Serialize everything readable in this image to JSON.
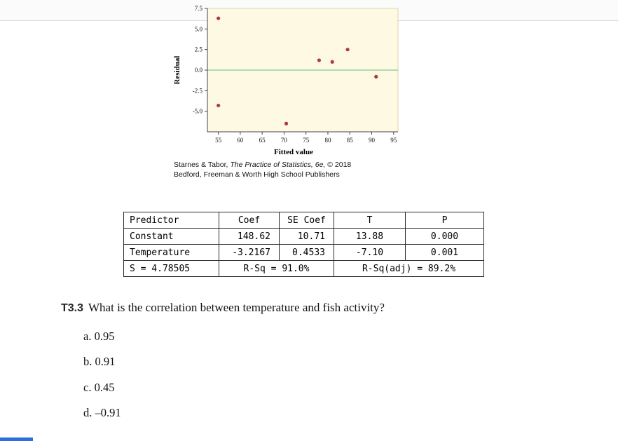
{
  "chart_data": {
    "type": "scatter",
    "title": "",
    "xlabel": "Fitted value",
    "ylabel": "Residual",
    "xlim": [
      52.5,
      96
    ],
    "ylim": [
      -7.5,
      7.5
    ],
    "x_ticks": [
      55,
      60,
      65,
      70,
      75,
      80,
      85,
      90,
      95
    ],
    "y_ticks": [
      7.5,
      5.0,
      2.5,
      0.0,
      -2.5,
      -5.0
    ],
    "zero_line": 0.0,
    "points": [
      {
        "x": 55.0,
        "y": 6.3
      },
      {
        "x": 55.0,
        "y": -4.3
      },
      {
        "x": 70.5,
        "y": -6.5
      },
      {
        "x": 78.0,
        "y": 1.2
      },
      {
        "x": 81.0,
        "y": 1.0
      },
      {
        "x": 84.5,
        "y": 2.5
      },
      {
        "x": 91.0,
        "y": -0.8
      }
    ],
    "grid": false,
    "legend": "none",
    "plot_bg": "#fdf9e3",
    "plot_border": "#ddd6ab",
    "point_color": "#b03a3a",
    "zero_line_color": "#8cc98c",
    "axis_color": "#444444"
  },
  "credit": {
    "line1_authors": "Starnes & Tabor, ",
    "line1_title": "The Practice of Statistics, 6e,",
    "line1_year": " © 2018",
    "line2": "Bedford, Freeman & Worth High School Publishers"
  },
  "table": {
    "headers": [
      "Predictor",
      "Coef",
      "SE Coef",
      "T",
      "P"
    ],
    "rows": [
      [
        "Constant",
        "148.62",
        "10.71",
        "13.88",
        "0.000"
      ],
      [
        "Temperature",
        "-3.2167",
        "0.4533",
        "-7.10",
        "0.001"
      ]
    ],
    "footer": {
      "s": "S = 4.78505",
      "rsq": "R-Sq = 91.0%",
      "rsq_adj": "R-Sq(adj) = 89.2%"
    }
  },
  "question": {
    "number": "T3.3",
    "text": "What is the correlation between temperature and fish activity?",
    "options": [
      "a. 0.95",
      "b. 0.91",
      "c. 0.45",
      "d. –0.91"
    ]
  },
  "player": {
    "progress_color": "#2e6fdd"
  }
}
